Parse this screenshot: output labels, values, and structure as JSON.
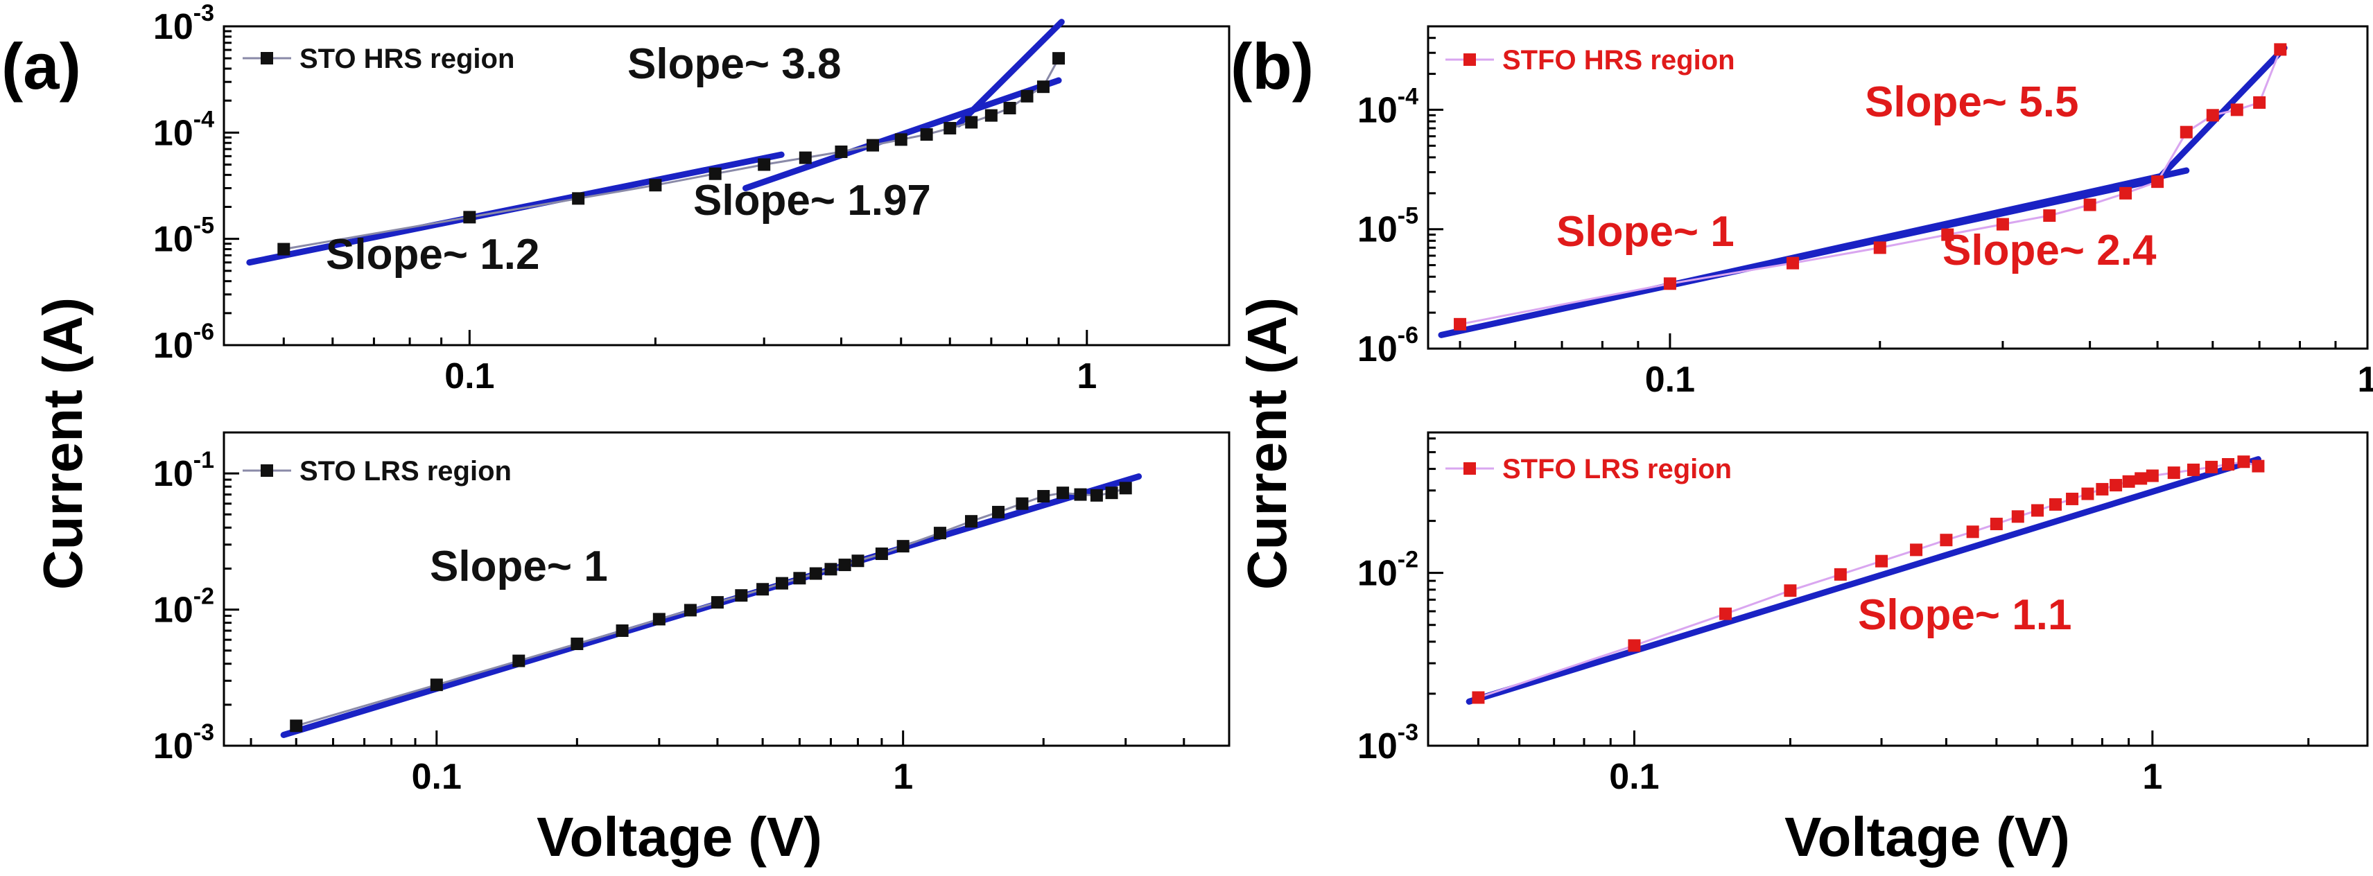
{
  "figure": {
    "panel_labels": [
      "(a)",
      "(b)"
    ],
    "ylabel": "Current (A)",
    "xlabel": "Voltage (V)",
    "colors": {
      "fit": "#1a22c4",
      "sto": "#111111",
      "stfo": "#e01a1a",
      "stfo_line": "#d9a6f0"
    }
  },
  "chart_data": [
    {
      "id": "a-top",
      "type": "scatter",
      "log_x": true,
      "log_y": true,
      "xlim": [
        0.04,
        1.7
      ],
      "ylim": [
        1e-06,
        0.001
      ],
      "xticks": [
        0.1,
        1
      ],
      "xtick_labels": [
        "0.1",
        "1"
      ],
      "yticks": [
        1e-06,
        1e-05,
        0.0001,
        0.001
      ],
      "ytick_labels": [
        {
          "base": "10",
          "exp": "-6"
        },
        {
          "base": "10",
          "exp": "-5"
        },
        {
          "base": "10",
          "exp": "-4"
        },
        {
          "base": "10",
          "exp": "-3"
        }
      ],
      "legend": "STO HRS region",
      "legend_position": "top-left",
      "series": [
        {
          "name": "STO HRS region",
          "color": "#111111",
          "marker": "square",
          "x": [
            0.05,
            0.1,
            0.15,
            0.2,
            0.25,
            0.3,
            0.35,
            0.4,
            0.45,
            0.5,
            0.55,
            0.6,
            0.65,
            0.7,
            0.75,
            0.8,
            0.85,
            0.9
          ],
          "y": [
            8e-06,
            1.6e-05,
            2.4e-05,
            3.2e-05,
            4.1e-05,
            5e-05,
            5.8e-05,
            6.6e-05,
            7.6e-05,
            8.6e-05,
            9.6e-05,
            0.00011,
            0.000125,
            0.000145,
            0.00017,
            0.00022,
            0.00027,
            0.0005
          ]
        }
      ],
      "fits": [
        {
          "label": "Slope~ 1.2",
          "slope": 1.2,
          "x": [
            0.044,
            0.32
          ],
          "y": [
            6e-06,
            6.2e-05
          ]
        },
        {
          "label": "Slope~ 1.97",
          "slope": 1.97,
          "x": [
            0.28,
            0.9
          ],
          "y": [
            3e-05,
            0.00031
          ]
        },
        {
          "label": "Slope~ 3.8",
          "slope": 3.8,
          "x": [
            0.62,
            0.91
          ],
          "y": [
            0.00012,
            0.0011
          ]
        }
      ]
    },
    {
      "id": "a-bottom",
      "type": "scatter",
      "log_x": true,
      "log_y": true,
      "xlim": [
        0.035,
        5.0
      ],
      "ylim": [
        0.001,
        0.2
      ],
      "xticks": [
        0.1,
        1
      ],
      "xtick_labels": [
        "0.1",
        "1"
      ],
      "yticks": [
        0.001,
        0.01,
        0.1
      ],
      "ytick_labels": [
        {
          "base": "10",
          "exp": "-3"
        },
        {
          "base": "10",
          "exp": "-2"
        },
        {
          "base": "10",
          "exp": "-1"
        }
      ],
      "legend": "STO LRS region",
      "legend_position": "top-left",
      "series": [
        {
          "name": "STO LRS region",
          "color": "#111111",
          "marker": "square",
          "x": [
            0.05,
            0.1,
            0.15,
            0.2,
            0.25,
            0.3,
            0.35,
            0.4,
            0.45,
            0.5,
            0.55,
            0.6,
            0.65,
            0.7,
            0.75,
            0.8,
            0.9,
            1.0,
            1.2,
            1.4,
            1.6,
            1.8,
            2.0,
            2.2,
            2.4,
            2.6,
            2.8,
            3.0
          ],
          "y": [
            0.0014,
            0.0028,
            0.0042,
            0.0056,
            0.007,
            0.0085,
            0.0099,
            0.0113,
            0.0127,
            0.0141,
            0.0156,
            0.017,
            0.0184,
            0.0198,
            0.0213,
            0.0228,
            0.0257,
            0.0292,
            0.0365,
            0.0445,
            0.052,
            0.06,
            0.068,
            0.072,
            0.07,
            0.069,
            0.072,
            0.078
          ]
        }
      ],
      "fits": [
        {
          "label": "Slope~ 1",
          "slope": 1,
          "x": [
            0.047,
            3.2
          ],
          "y": [
            0.0012,
            0.095
          ]
        }
      ]
    },
    {
      "id": "b-top",
      "type": "scatter",
      "log_x": true,
      "log_y": true,
      "xlim": [
        0.045,
        1.0
      ],
      "ylim": [
        1e-06,
        0.0005
      ],
      "xticks": [
        0.1,
        1
      ],
      "xtick_labels": [
        "0.1",
        "1"
      ],
      "yticks": [
        1e-06,
        1e-05,
        0.0001
      ],
      "ytick_labels": [
        {
          "base": "10",
          "exp": "-6"
        },
        {
          "base": "10",
          "exp": "-5"
        },
        {
          "base": "10",
          "exp": "-4"
        }
      ],
      "legend": "STFO HRS region",
      "legend_position": "top-left",
      "series": [
        {
          "name": "STFO HRS region",
          "color": "#e01a1a",
          "marker": "square",
          "x": [
            0.05,
            0.1,
            0.15,
            0.2,
            0.25,
            0.3,
            0.35,
            0.4,
            0.45,
            0.5,
            0.55,
            0.6,
            0.65,
            0.7,
            0.75
          ],
          "y": [
            1.6e-06,
            3.5e-06,
            5.2e-06,
            7e-06,
            9e-06,
            1.1e-05,
            1.3e-05,
            1.6e-05,
            2e-05,
            2.5e-05,
            6.5e-05,
            9e-05,
            0.0001,
            0.000115,
            0.00032
          ]
        }
      ],
      "fits": [
        {
          "label": "Slope~ 1",
          "slope": 1,
          "x": [
            0.047,
            0.5
          ],
          "y": [
            1.3e-06,
            2.6e-05
          ]
        },
        {
          "label": "Slope~ 2.4",
          "slope": 2.4,
          "x": [
            0.1,
            0.55
          ],
          "y": [
            3.4e-06,
            3.1e-05
          ]
        },
        {
          "label": "Slope~ 5.5",
          "slope": 5.5,
          "x": [
            0.5,
            0.76
          ],
          "y": [
            2.6e-05,
            0.00033
          ]
        }
      ]
    },
    {
      "id": "b-bottom",
      "type": "scatter",
      "log_x": true,
      "log_y": true,
      "xlim": [
        0.04,
        2.6
      ],
      "ylim": [
        0.001,
        0.065
      ],
      "xticks": [
        0.1,
        1
      ],
      "xtick_labels": [
        "0.1",
        "1"
      ],
      "yticks": [
        0.001,
        0.01
      ],
      "ytick_labels": [
        {
          "base": "10",
          "exp": "-3"
        },
        {
          "base": "10",
          "exp": "-2"
        }
      ],
      "legend": "STFO LRS region",
      "legend_position": "top-left",
      "series": [
        {
          "name": "STFO LRS region",
          "color": "#e01a1a",
          "marker": "square",
          "x": [
            0.05,
            0.1,
            0.15,
            0.2,
            0.25,
            0.3,
            0.35,
            0.4,
            0.45,
            0.5,
            0.55,
            0.6,
            0.65,
            0.7,
            0.75,
            0.8,
            0.85,
            0.9,
            0.95,
            1.0,
            1.1,
            1.2,
            1.3,
            1.4,
            1.5,
            1.6
          ],
          "y": [
            0.0019,
            0.0038,
            0.0058,
            0.0079,
            0.0098,
            0.0117,
            0.0136,
            0.0155,
            0.0173,
            0.0192,
            0.0212,
            0.023,
            0.0249,
            0.0268,
            0.0287,
            0.0305,
            0.0322,
            0.0338,
            0.0352,
            0.0365,
            0.038,
            0.0395,
            0.041,
            0.0425,
            0.044,
            0.0415
          ]
        }
      ],
      "fits": [
        {
          "label": "Slope~ 1.1",
          "slope": 1.1,
          "x": [
            0.048,
            1.6
          ],
          "y": [
            0.0018,
            0.0455
          ]
        }
      ]
    }
  ]
}
